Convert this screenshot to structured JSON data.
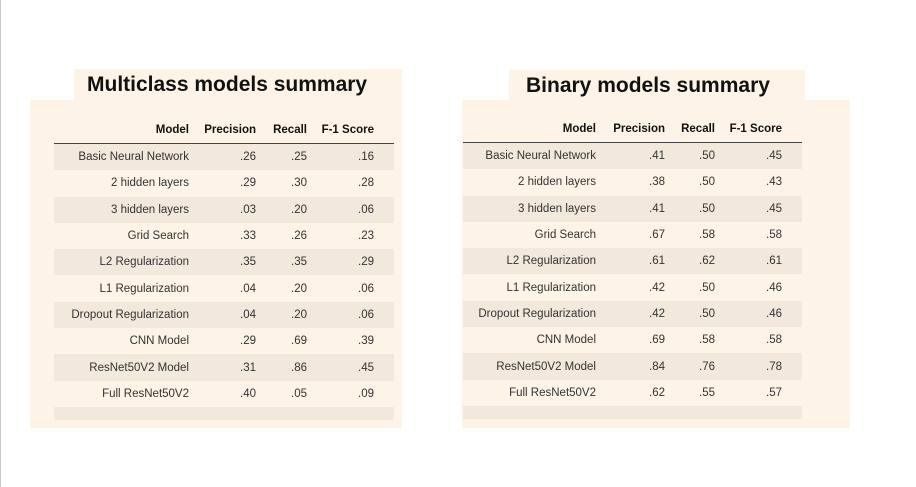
{
  "multiclass": {
    "title": "Multiclass models summary",
    "headers": [
      "Model",
      "Precision",
      "Recall",
      "F-1 Score"
    ],
    "rows": [
      [
        "Basic Neural Network",
        ".26",
        ".25",
        ".16"
      ],
      [
        "2 hidden layers",
        ".29",
        ".30",
        ".28"
      ],
      [
        "3 hidden layers",
        ".03",
        ".20",
        ".06"
      ],
      [
        "Grid Search",
        ".33",
        ".26",
        ".23"
      ],
      [
        "L2 Regularization",
        ".35",
        ".35",
        ".29"
      ],
      [
        "L1 Regularization",
        ".04",
        ".20",
        ".06"
      ],
      [
        "Dropout Regularization",
        ".04",
        ".20",
        ".06"
      ],
      [
        "CNN Model",
        ".29",
        ".69",
        ".39"
      ],
      [
        "ResNet50V2 Model",
        ".31",
        ".86",
        ".45"
      ],
      [
        "Full ResNet50V2",
        ".40",
        ".05",
        ".09"
      ]
    ]
  },
  "binary": {
    "title": "Binary models summary",
    "headers": [
      "Model",
      "Precision",
      "Recall",
      "F-1 Score"
    ],
    "rows": [
      [
        "Basic Neural Network",
        ".41",
        ".50",
        ".45"
      ],
      [
        "2 hidden layers",
        ".38",
        ".50",
        ".43"
      ],
      [
        "3 hidden layers",
        ".41",
        ".50",
        ".45"
      ],
      [
        "Grid Search",
        ".67",
        ".58",
        ".58"
      ],
      [
        "L2 Regularization",
        ".61",
        ".62",
        ".61"
      ],
      [
        "L1 Regularization",
        ".42",
        ".50",
        ".46"
      ],
      [
        "Dropout Regularization",
        ".42",
        ".50",
        ".46"
      ],
      [
        "CNN Model",
        ".69",
        ".58",
        ".58"
      ],
      [
        "ResNet50V2 Model",
        ".84",
        ".76",
        ".78"
      ],
      [
        "Full ResNet50V2",
        ".62",
        ".55",
        ".57"
      ]
    ]
  },
  "colors": {
    "panel_background": "#fdf3e6",
    "row_stripe": "#f2e8dc",
    "header_rule": "#444444"
  }
}
